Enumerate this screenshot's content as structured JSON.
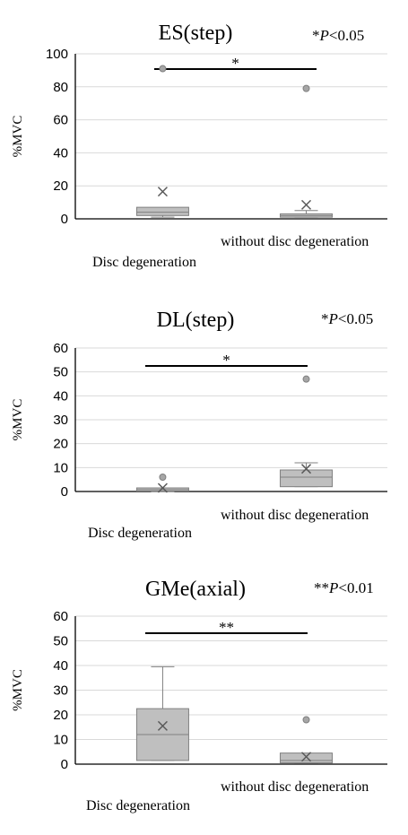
{
  "chart_data": [
    {
      "type": "box",
      "title": "ES(step)",
      "pvalue_prefix": "*",
      "pvalue_italic": "P",
      "pvalue_suffix": "<0.05",
      "ylabel": "%MVC",
      "ylim": [
        0,
        100
      ],
      "yticks": [
        "0",
        "20",
        "40",
        "60",
        "80",
        "100"
      ],
      "categories": [
        "Disc degeneration",
        "without disc degeneration"
      ],
      "grid": true,
      "significance_marker": "*",
      "boxes": [
        {
          "category": "Disc degeneration",
          "whisker_low": 1,
          "q1": 2,
          "median": 4,
          "q3": 7,
          "whisker_high": 7,
          "mean": 16.5,
          "outliers": [
            91
          ]
        },
        {
          "category": "without disc degeneration",
          "whisker_low": 1,
          "q1": 1,
          "median": 2,
          "q3": 3,
          "whisker_high": 5,
          "mean": 8.5,
          "outliers": [
            79
          ]
        }
      ]
    },
    {
      "type": "box",
      "title": "DL(step)",
      "pvalue_prefix": "*",
      "pvalue_italic": "P",
      "pvalue_suffix": "<0.05",
      "ylabel": "%MVC",
      "ylim": [
        0,
        60
      ],
      "yticks": [
        "0",
        "10",
        "20",
        "30",
        "40",
        "50",
        "60"
      ],
      "categories": [
        "Disc degeneration",
        "without disc degeneration"
      ],
      "grid": true,
      "significance_marker": "*",
      "boxes": [
        {
          "category": "Disc degeneration",
          "whisker_low": 0,
          "q1": 0.2,
          "median": 0.8,
          "q3": 1.5,
          "whisker_high": 1.5,
          "mean": 1.5,
          "outliers": [
            6
          ]
        },
        {
          "category": "without disc degeneration",
          "whisker_low": 2,
          "q1": 2,
          "median": 6,
          "q3": 9,
          "whisker_high": 12,
          "mean": 9.5,
          "outliers": [
            47
          ]
        }
      ]
    },
    {
      "type": "box",
      "title": "GMe(axial)",
      "pvalue_prefix": "**",
      "pvalue_italic": "P",
      "pvalue_suffix": "<0.01",
      "ylabel": "%MVC",
      "ylim": [
        0,
        60
      ],
      "yticks": [
        "0",
        "10",
        "20",
        "30",
        "40",
        "50",
        "60"
      ],
      "categories": [
        "Disc degeneration",
        "without disc degeneration"
      ],
      "grid": true,
      "significance_marker": "**",
      "boxes": [
        {
          "category": "Disc degeneration",
          "whisker_low": 1.5,
          "q1": 1.5,
          "median": 12,
          "q3": 22.5,
          "whisker_high": 39.5,
          "mean": 15.5,
          "outliers": []
        },
        {
          "category": "without disc degeneration",
          "whisker_low": 0.5,
          "q1": 0.5,
          "median": 1.5,
          "q3": 4.5,
          "whisker_high": 4.5,
          "mean": 3,
          "outliers": [
            18
          ]
        }
      ]
    }
  ],
  "colors": {
    "box_fill": "#bfbfbf",
    "box_stroke": "#808080",
    "grid": "#d9d9d9",
    "axis": "#000000",
    "marker": "#7f7f7f"
  }
}
